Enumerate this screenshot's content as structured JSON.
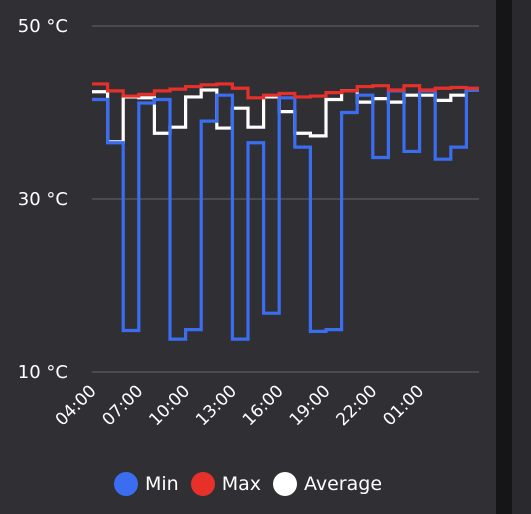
{
  "chart_data": {
    "type": "line",
    "step": true,
    "y_ticks": [
      {
        "value": 10,
        "label": "10 °C"
      },
      {
        "value": 30,
        "label": "30 °C"
      },
      {
        "value": 50,
        "label": "50 °C"
      }
    ],
    "ylim": [
      10,
      50
    ],
    "x_ticks": [
      {
        "index": 0,
        "label": "04:00"
      },
      {
        "index": 3,
        "label": "07:00"
      },
      {
        "index": 6,
        "label": "10:00"
      },
      {
        "index": 9,
        "label": "13:00"
      },
      {
        "index": 12,
        "label": "16:00"
      },
      {
        "index": 15,
        "label": "19:00"
      },
      {
        "index": 18,
        "label": "22:00"
      },
      {
        "index": 21,
        "label": "01:00"
      }
    ],
    "grid": true,
    "legend_position": "bottom",
    "series": [
      {
        "name": "Min",
        "color": "#3a6df0",
        "values": [
          41.5,
          36.5,
          14.8,
          41.1,
          41.5,
          13.8,
          14.9,
          39.0,
          42.0,
          13.8,
          36.5,
          16.8,
          41.7,
          36.0,
          14.7,
          14.9,
          40.0,
          42.0,
          34.8,
          42.5,
          35.5,
          42.5,
          34.6,
          36.0,
          42.6
        ]
      },
      {
        "name": "Max",
        "color": "#e8302a",
        "values": [
          43.3,
          42.5,
          41.9,
          42.1,
          42.5,
          42.7,
          43.0,
          43.2,
          43.3,
          42.8,
          41.7,
          42.0,
          42.2,
          41.8,
          41.9,
          42.3,
          42.5,
          43.0,
          43.1,
          42.6,
          43.1,
          42.6,
          42.8,
          42.9,
          42.8
        ]
      },
      {
        "name": "Average",
        "color": "#ffffff",
        "values": [
          42.4,
          36.6,
          41.8,
          41.7,
          37.6,
          38.3,
          41.8,
          42.6,
          38.2,
          40.5,
          38.3,
          41.8,
          40.1,
          37.6,
          37.3,
          41.5,
          42.5,
          41.2,
          41.6,
          41.2,
          42.0,
          42.0,
          41.4,
          42.0,
          42.6
        ]
      }
    ]
  }
}
